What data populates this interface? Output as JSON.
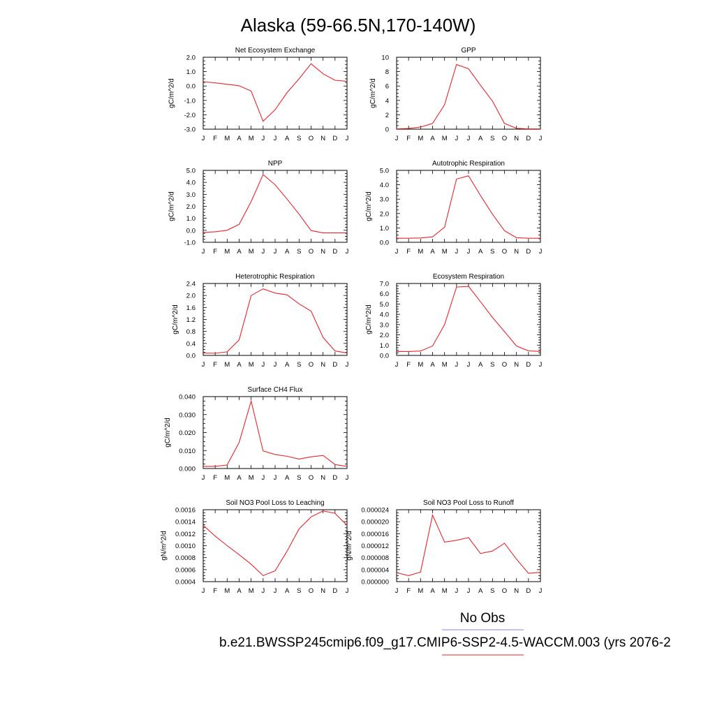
{
  "page": {
    "title": "Alaska (59-66.5N,170-140W)",
    "no_obs_label": "No Obs",
    "case_label": "b.e21.BWSSP245cmip6.f09_g17.CMIP6-SSP2-4.5-WACCM.003 (yrs 2076-2",
    "colors": {
      "model_line": "#e8262b",
      "obs_line": "#8080ff"
    }
  },
  "chart_data": [
    {
      "type": "line",
      "title": "Net Ecosystem Exchange",
      "ylabel": "gC/m^2/d",
      "x": [
        "J",
        "F",
        "M",
        "A",
        "M",
        "J",
        "J",
        "A",
        "S",
        "O",
        "N",
        "D",
        "J"
      ],
      "ylim": [
        -3.0,
        2.0
      ],
      "yticks": [
        "-3.0",
        "-2.0",
        "-1.0",
        "0.0",
        "1.0",
        "2.0"
      ],
      "series": [
        {
          "values": [
            0.3,
            0.22,
            0.12,
            0.02,
            -0.35,
            -2.45,
            -1.65,
            -0.45,
            0.5,
            1.55,
            0.85,
            0.4,
            0.33
          ]
        }
      ]
    },
    {
      "type": "line",
      "title": "GPP",
      "ylabel": "gC/m^2/d",
      "x": [
        "J",
        "F",
        "M",
        "A",
        "M",
        "J",
        "J",
        "A",
        "S",
        "O",
        "N",
        "D",
        "J"
      ],
      "ylim": [
        0,
        10
      ],
      "yticks": [
        "0",
        "2",
        "4",
        "6",
        "8",
        "10"
      ],
      "series": [
        {
          "values": [
            0.05,
            0.1,
            0.3,
            0.8,
            3.4,
            9.0,
            8.4,
            6.1,
            3.9,
            0.8,
            0.12,
            0.05,
            0.05
          ]
        }
      ]
    },
    {
      "type": "line",
      "title": "NPP",
      "ylabel": "gC/m^2/d",
      "x": [
        "J",
        "F",
        "M",
        "A",
        "M",
        "J",
        "J",
        "A",
        "S",
        "O",
        "N",
        "D",
        "J"
      ],
      "ylim": [
        -1.0,
        5.0
      ],
      "yticks": [
        "-1.0",
        "0.0",
        "1.0",
        "2.0",
        "3.0",
        "4.0",
        "5.0"
      ],
      "series": [
        {
          "values": [
            -0.18,
            -0.12,
            0.0,
            0.5,
            2.4,
            4.65,
            3.8,
            2.6,
            1.35,
            -0.02,
            -0.22,
            -0.22,
            -0.22
          ]
        }
      ]
    },
    {
      "type": "line",
      "title": "Autotrophic Respiration",
      "ylabel": "gC/m^2/d",
      "x": [
        "J",
        "F",
        "M",
        "A",
        "M",
        "J",
        "J",
        "A",
        "S",
        "O",
        "N",
        "D",
        "J"
      ],
      "ylim": [
        0.0,
        5.0
      ],
      "yticks": [
        "0.0",
        "1.0",
        "2.0",
        "3.0",
        "4.0",
        "5.0"
      ],
      "series": [
        {
          "values": [
            0.28,
            0.28,
            0.3,
            0.38,
            1.05,
            4.4,
            4.62,
            3.25,
            1.95,
            0.8,
            0.32,
            0.28,
            0.28
          ]
        }
      ]
    },
    {
      "type": "line",
      "title": "Heterotrophic Respiration",
      "ylabel": "gC/m^2/d",
      "x": [
        "J",
        "F",
        "M",
        "A",
        "M",
        "J",
        "J",
        "A",
        "S",
        "O",
        "N",
        "D",
        "J"
      ],
      "ylim": [
        0.0,
        2.4
      ],
      "yticks": [
        "0.0",
        "0.4",
        "0.8",
        "1.2",
        "1.6",
        "2.0",
        "2.4"
      ],
      "series": [
        {
          "values": [
            0.08,
            0.07,
            0.12,
            0.52,
            2.0,
            2.22,
            2.08,
            2.02,
            1.72,
            1.48,
            0.6,
            0.15,
            0.08
          ]
        }
      ]
    },
    {
      "type": "line",
      "title": "Ecosystem Respiration",
      "ylabel": "gC/m^2/d",
      "x": [
        "J",
        "F",
        "M",
        "A",
        "M",
        "J",
        "J",
        "A",
        "S",
        "O",
        "N",
        "D",
        "J"
      ],
      "ylim": [
        0.0,
        7.0
      ],
      "yticks": [
        "0.0",
        "1.0",
        "2.0",
        "3.0",
        "4.0",
        "5.0",
        "6.0",
        "7.0"
      ],
      "series": [
        {
          "values": [
            0.38,
            0.38,
            0.43,
            0.92,
            3.0,
            6.65,
            6.72,
            5.22,
            3.7,
            2.32,
            0.92,
            0.45,
            0.38
          ]
        }
      ]
    },
    {
      "type": "line",
      "title": "Surface CH4 Flux",
      "ylabel": "gC/m^2/d",
      "x": [
        "J",
        "F",
        "M",
        "A",
        "M",
        "J",
        "J",
        "A",
        "S",
        "O",
        "N",
        "D",
        "J"
      ],
      "ylim": [
        0.0,
        0.04
      ],
      "yticks": [
        "0.000",
        "0.010",
        "0.020",
        "0.030",
        "0.040"
      ],
      "series": [
        {
          "values": [
            0.0012,
            0.0012,
            0.002,
            0.0145,
            0.0375,
            0.0098,
            0.0078,
            0.0068,
            0.0053,
            0.0065,
            0.0073,
            0.0022,
            0.0012
          ]
        }
      ]
    },
    {
      "type": "line",
      "title": "Soil NO3 Pool Loss to Leaching",
      "ylabel": "gN/m^2/d",
      "x": [
        "J",
        "F",
        "M",
        "A",
        "M",
        "J",
        "J",
        "A",
        "S",
        "O",
        "N",
        "D",
        "J"
      ],
      "ylim": [
        0.0004,
        0.0016
      ],
      "yticks": [
        "0.0004",
        "0.0006",
        "0.0008",
        "0.0010",
        "0.0012",
        "0.0014",
        "0.0016"
      ],
      "series": [
        {
          "values": [
            0.00134,
            0.00116,
            0.001,
            0.00085,
            0.00069,
            0.0005,
            0.00058,
            0.00091,
            0.00128,
            0.00148,
            0.00158,
            0.00154,
            0.00134
          ]
        }
      ]
    },
    {
      "type": "line",
      "title": "Soil NO3 Pool Loss to Runoff",
      "ylabel": "gN/m^2/d",
      "x": [
        "J",
        "F",
        "M",
        "A",
        "M",
        "J",
        "J",
        "A",
        "S",
        "O",
        "N",
        "D",
        "J"
      ],
      "ylim": [
        0.0,
        2.4e-05
      ],
      "yticks": [
        "0.000000",
        "0.000004",
        "0.000008",
        "0.000012",
        "0.000016",
        "0.000020",
        "0.000024"
      ],
      "series": [
        {
          "values": [
            3e-06,
            2e-06,
            3.2e-06,
            2.22e-05,
            1.32e-05,
            1.38e-05,
            1.47e-05,
            9.4e-06,
            1.02e-05,
            1.28e-05,
            7.5e-06,
            2.8e-06,
            3.1e-06
          ]
        }
      ]
    }
  ]
}
